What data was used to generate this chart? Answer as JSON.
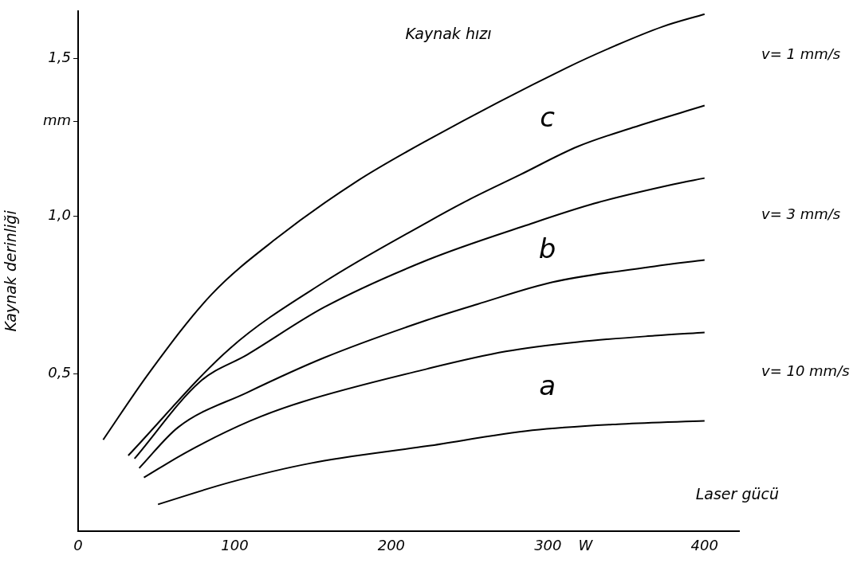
{
  "chart_data": {
    "type": "line",
    "title": "Kaynak hızı",
    "xlabel": "Laser gücü",
    "ylabel": "Kaynak derinliği",
    "xlim": [
      0,
      422
    ],
    "xticks": [
      0,
      100,
      200,
      300,
      {
        "value": 324,
        "label": "W"
      },
      400
    ],
    "ylim": [
      0,
      1.65
    ],
    "yticks": [
      {
        "value": 0.5,
        "label": "0,5"
      },
      {
        "value": 1.0,
        "label": "1,0"
      },
      {
        "value": 1.3,
        "label": "mm"
      },
      {
        "value": 1.5,
        "label": "1,5"
      }
    ],
    "grid": false,
    "legend": false,
    "marker": "none",
    "line_style": "solid",
    "series": [
      {
        "color": "#000000",
        "x": [
          16,
          45,
          85,
          127,
          178,
          223,
          312,
          343,
          373,
          400
        ],
        "values": [
          0.29,
          0.5,
          0.75,
          0.93,
          1.11,
          1.24,
          1.47,
          1.54,
          1.6,
          1.64
        ]
      },
      {
        "color": "#000000",
        "x": [
          32,
          97,
          157,
          223,
          249,
          282,
          319,
          354,
          400
        ],
        "values": [
          0.24,
          0.58,
          0.79,
          0.98,
          1.05,
          1.13,
          1.22,
          1.28,
          1.35
        ]
      },
      {
        "color": "#000000",
        "x": [
          36,
          78,
          108,
          157,
          223,
          286,
          330,
          380,
          400
        ],
        "values": [
          0.23,
          0.475,
          0.56,
          0.71,
          0.86,
          0.97,
          1.04,
          1.1,
          1.12
        ]
      },
      {
        "color": "#000000",
        "x": [
          39,
          64,
          108,
          157,
          223,
          255,
          303,
          368,
          400
        ],
        "values": [
          0.2,
          0.33,
          0.44,
          0.55,
          0.67,
          0.72,
          0.79,
          0.84,
          0.86
        ]
      },
      {
        "color": "#000000",
        "x": [
          42,
          69,
          110,
          143,
          223,
          273,
          319,
          368,
          400
        ],
        "values": [
          0.17,
          0.25,
          0.35,
          0.41,
          0.515,
          0.57,
          0.6,
          0.62,
          0.63
        ]
      },
      {
        "color": "#000000",
        "x": [
          51,
          97,
          148,
          223,
          290,
          347,
          400
        ],
        "values": [
          0.085,
          0.155,
          0.215,
          0.27,
          0.32,
          0.34,
          0.35
        ]
      }
    ],
    "annotations": [
      "c",
      "b",
      "a",
      "v= 1 mm/s",
      "v= 3 mm/s",
      "v= 10 mm/s"
    ]
  }
}
